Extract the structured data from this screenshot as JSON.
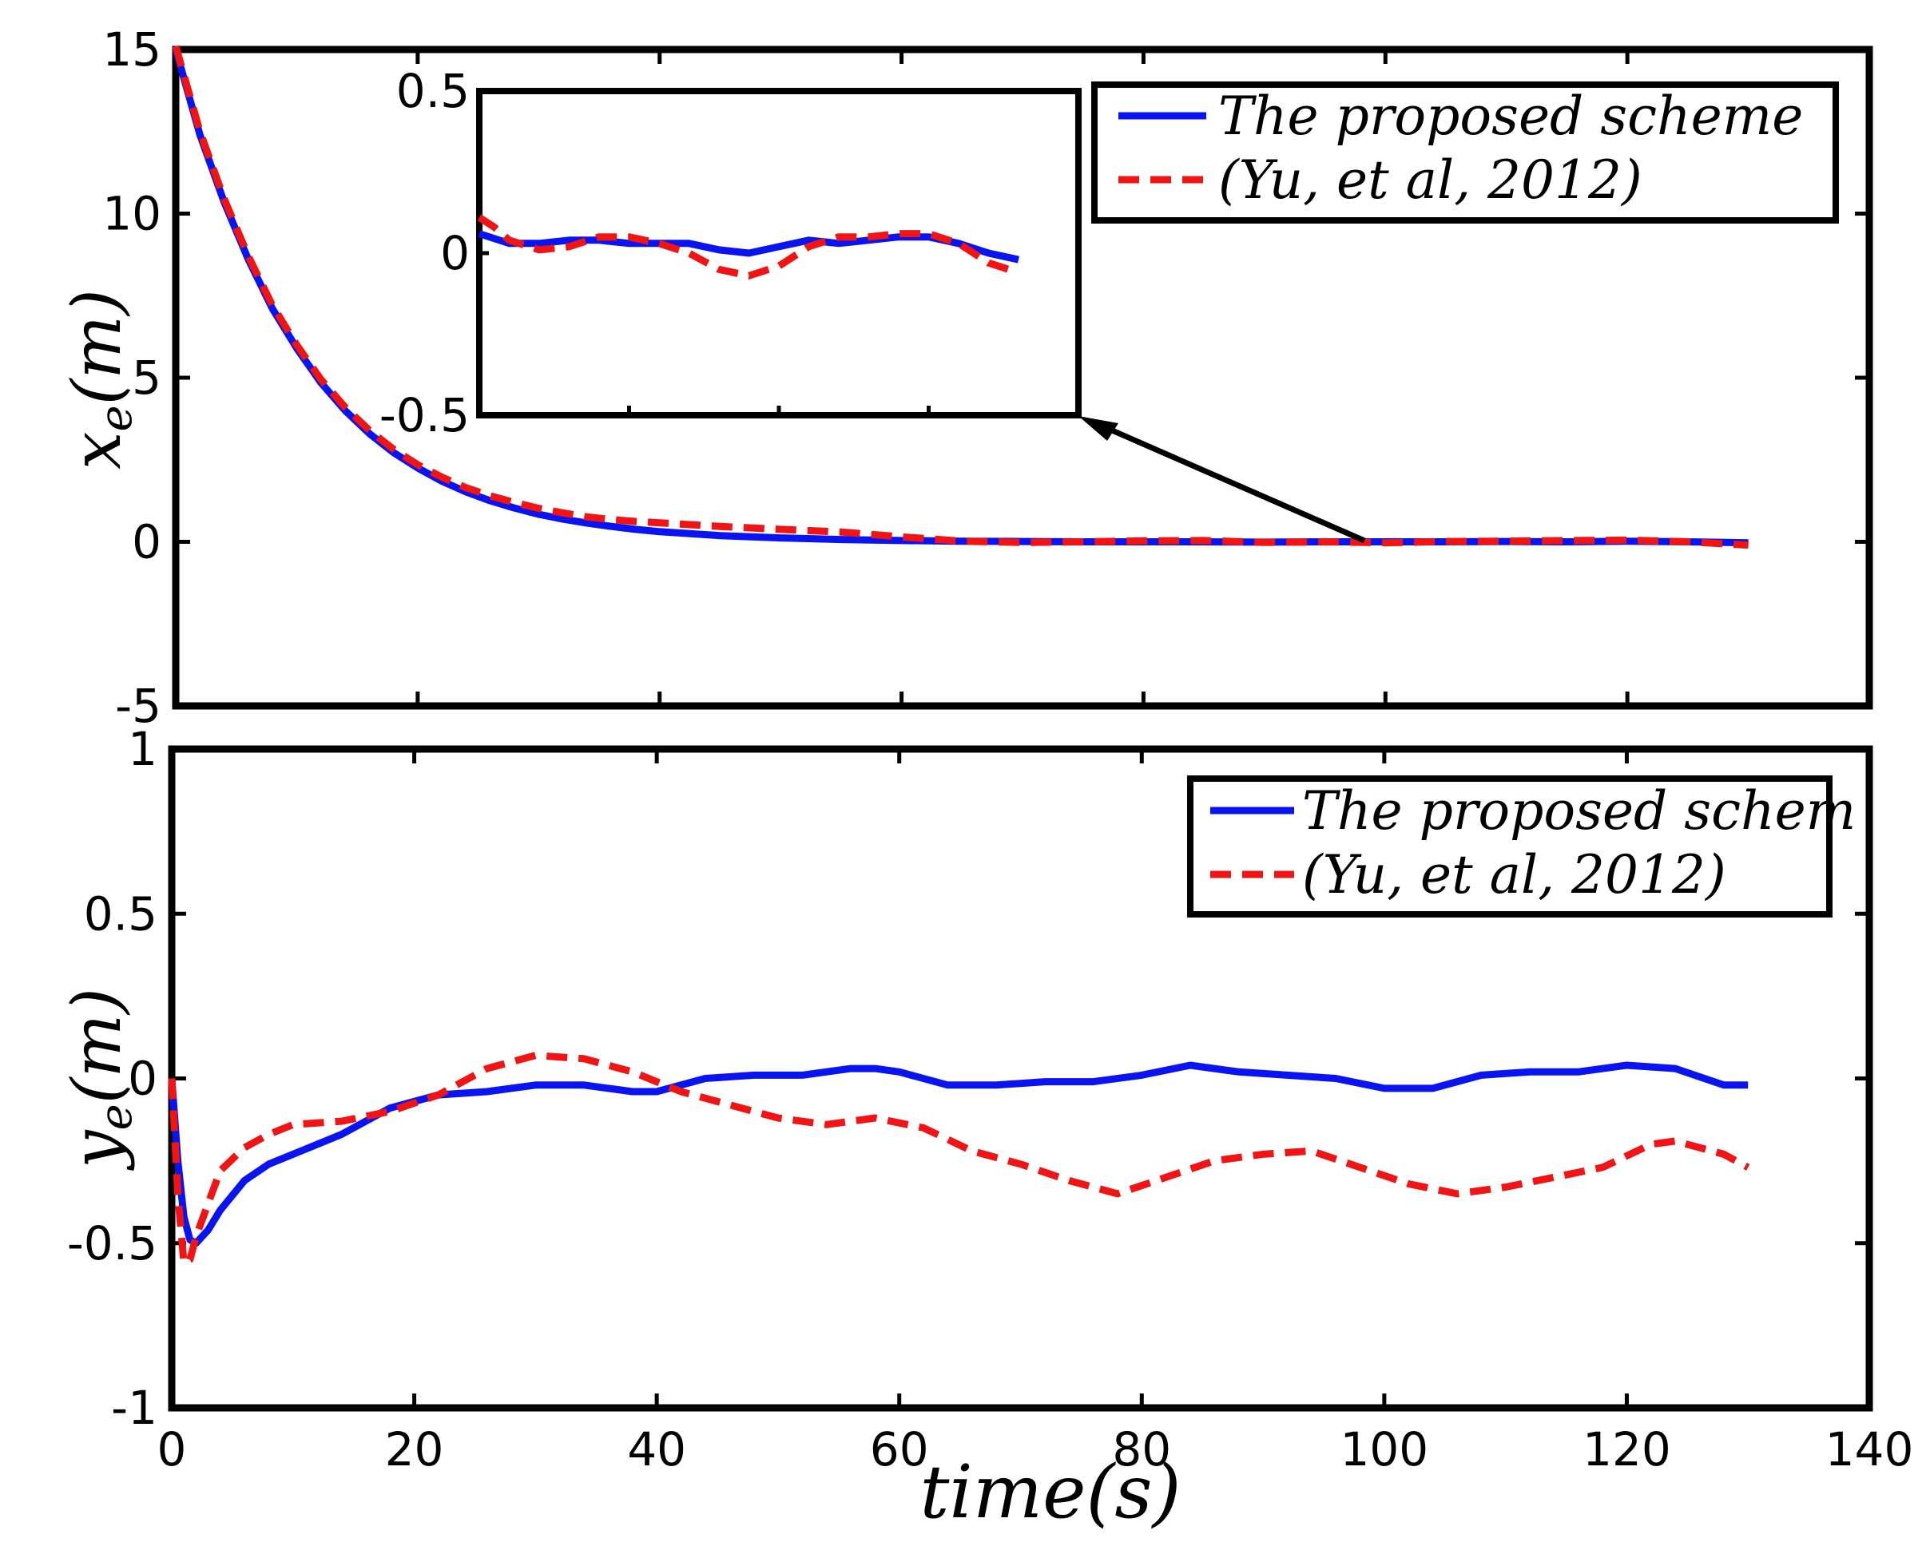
{
  "colors": {
    "proposed": "#0a14f0",
    "yu2012": "#f01414",
    "axes": "#000000"
  },
  "chart_data": [
    {
      "id": "top",
      "type": "line",
      "title": "",
      "xlabel": "",
      "ylabel": "x_e(m)",
      "ylabel_base": "x",
      "ylabel_sub": "e",
      "ylabel_rest": "(m)",
      "xlim": [
        0,
        140
      ],
      "ylim": [
        -5,
        15
      ],
      "xticks": [
        0,
        20,
        40,
        60,
        80,
        100,
        120,
        140
      ],
      "yticks": [
        -5,
        0,
        5,
        10,
        15
      ],
      "xtick_labels": [
        "",
        "",
        "",
        "",
        "",
        "",
        "",
        ""
      ],
      "ytick_labels": [
        "-5",
        "0",
        "5",
        "10",
        "15"
      ],
      "legend": {
        "position": "top-right",
        "entries": [
          "The proposed scheme",
          "(Yu, et al, 2012)"
        ]
      },
      "series": [
        {
          "name": "The proposed scheme",
          "style": "solid",
          "x": [
            0,
            2,
            4,
            6,
            8,
            10,
            12,
            14,
            16,
            18,
            20,
            22,
            24,
            26,
            28,
            30,
            32,
            34,
            36,
            38,
            40,
            45,
            50,
            55,
            60,
            65,
            70,
            75,
            80,
            85,
            90,
            95,
            100,
            105,
            110,
            115,
            120,
            125,
            130
          ],
          "values": [
            15,
            12.4,
            10.35,
            8.6,
            7.1,
            5.9,
            4.85,
            4.0,
            3.3,
            2.72,
            2.25,
            1.85,
            1.52,
            1.25,
            1.03,
            0.84,
            0.69,
            0.57,
            0.47,
            0.38,
            0.31,
            0.19,
            0.12,
            0.07,
            0.04,
            0.02,
            0.01,
            0.0,
            0.0,
            0.0,
            -0.01,
            0.0,
            0.0,
            0.0,
            0.01,
            0.0,
            0.02,
            0.0,
            -0.03
          ]
        },
        {
          "name": "(Yu, et al, 2012)",
          "style": "dashed",
          "x": [
            0,
            2,
            4,
            6,
            8,
            10,
            12,
            14,
            16,
            18,
            20,
            22,
            24,
            26,
            28,
            30,
            32,
            34,
            36,
            38,
            40,
            45,
            50,
            55,
            60,
            65,
            70,
            75,
            80,
            85,
            90,
            95,
            100,
            105,
            110,
            115,
            120,
            125,
            130
          ],
          "values": [
            15.1,
            12.5,
            10.45,
            8.7,
            7.2,
            6.0,
            4.95,
            4.1,
            3.4,
            2.82,
            2.35,
            1.97,
            1.65,
            1.4,
            1.2,
            1.02,
            0.88,
            0.76,
            0.68,
            0.62,
            0.58,
            0.47,
            0.38,
            0.3,
            0.15,
            0.02,
            -0.02,
            0.0,
            0.03,
            0.04,
            -0.02,
            0.0,
            -0.03,
            0.01,
            0.02,
            0.04,
            0.05,
            0.0,
            -0.1
          ]
        }
      ]
    },
    {
      "id": "inset",
      "type": "line",
      "title": "",
      "xlim": [
        95,
        135
      ],
      "ylim": [
        -0.5,
        0.5
      ],
      "xticks": [
        105,
        115,
        125
      ],
      "yticks": [
        -0.5,
        0,
        0.5
      ],
      "ytick_labels": [
        "-0.5",
        "0",
        "0.5"
      ],
      "series": [
        {
          "name": "The proposed scheme",
          "style": "solid",
          "x": [
            95,
            97,
            99,
            101,
            103,
            105,
            107,
            109,
            111,
            113,
            115,
            117,
            119,
            121,
            123,
            125,
            127,
            129,
            131
          ],
          "values": [
            0.06,
            0.03,
            0.03,
            0.04,
            0.04,
            0.03,
            0.03,
            0.03,
            0.01,
            0.0,
            0.02,
            0.04,
            0.03,
            0.04,
            0.05,
            0.05,
            0.03,
            0.0,
            -0.02
          ]
        },
        {
          "name": "(Yu, et al, 2012)",
          "style": "dashed",
          "x": [
            95,
            96,
            97,
            99,
            101,
            103,
            105,
            107,
            109,
            111,
            113,
            115,
            117,
            119,
            121,
            123,
            125,
            127,
            129,
            131
          ],
          "values": [
            0.11,
            0.08,
            0.04,
            0.01,
            0.02,
            0.05,
            0.05,
            0.03,
            0.0,
            -0.05,
            -0.07,
            -0.04,
            0.02,
            0.05,
            0.05,
            0.06,
            0.06,
            0.03,
            -0.03,
            -0.06
          ]
        }
      ]
    },
    {
      "id": "bottom",
      "type": "line",
      "title": "",
      "xlabel": "time(s)",
      "ylabel": "y_e(m)",
      "ylabel_base": "y",
      "ylabel_sub": "e",
      "ylabel_rest": "(m)",
      "xlim": [
        0,
        140
      ],
      "ylim": [
        -1,
        1
      ],
      "xticks": [
        0,
        20,
        40,
        60,
        80,
        100,
        120,
        140
      ],
      "yticks": [
        -1,
        -0.5,
        0,
        0.5,
        1
      ],
      "xtick_labels": [
        "0",
        "20",
        "40",
        "60",
        "80",
        "100",
        "120",
        "140"
      ],
      "ytick_labels": [
        "-1",
        "-0.5",
        "0",
        "0.5",
        "1"
      ],
      "legend": {
        "position": "top-right",
        "entries": [
          "The proposed schem",
          "(Yu, et al, 2012)"
        ]
      },
      "series": [
        {
          "name": "The proposed schem",
          "style": "solid",
          "x": [
            0,
            0.5,
            1,
            1.5,
            2,
            3,
            4,
            6,
            8,
            10,
            14,
            18,
            22,
            26,
            30,
            34,
            38,
            40,
            44,
            48,
            52,
            56,
            58,
            60,
            64,
            68,
            72,
            76,
            80,
            84,
            88,
            92,
            96,
            100,
            104,
            108,
            112,
            116,
            120,
            124,
            128,
            130
          ],
          "values": [
            0,
            -0.25,
            -0.42,
            -0.49,
            -0.5,
            -0.46,
            -0.4,
            -0.31,
            -0.26,
            -0.23,
            -0.17,
            -0.09,
            -0.05,
            -0.04,
            -0.02,
            -0.02,
            -0.04,
            -0.04,
            0.0,
            0.01,
            0.01,
            0.03,
            0.03,
            0.02,
            -0.02,
            -0.02,
            -0.01,
            -0.01,
            0.01,
            0.04,
            0.02,
            0.01,
            0.0,
            -0.03,
            -0.03,
            0.01,
            0.02,
            0.02,
            0.04,
            0.03,
            -0.02,
            -0.02
          ]
        },
        {
          "name": "(Yu, et al, 2012)",
          "style": "dashed",
          "x": [
            0,
            0.5,
            1,
            1.5,
            2,
            3,
            4,
            6,
            8,
            10,
            14,
            18,
            22,
            26,
            30,
            34,
            38,
            42,
            46,
            50,
            54,
            58,
            62,
            66,
            70,
            74,
            78,
            82,
            86,
            90,
            94,
            98,
            102,
            106,
            110,
            114,
            118,
            122,
            124,
            128,
            130
          ],
          "values": [
            0,
            -0.35,
            -0.56,
            -0.55,
            -0.48,
            -0.38,
            -0.28,
            -0.21,
            -0.17,
            -0.14,
            -0.13,
            -0.1,
            -0.05,
            0.03,
            0.07,
            0.06,
            0.02,
            -0.04,
            -0.08,
            -0.12,
            -0.14,
            -0.12,
            -0.15,
            -0.22,
            -0.26,
            -0.31,
            -0.35,
            -0.3,
            -0.25,
            -0.23,
            -0.22,
            -0.27,
            -0.32,
            -0.35,
            -0.33,
            -0.3,
            -0.27,
            -0.2,
            -0.19,
            -0.23,
            -0.27
          ]
        }
      ]
    }
  ]
}
